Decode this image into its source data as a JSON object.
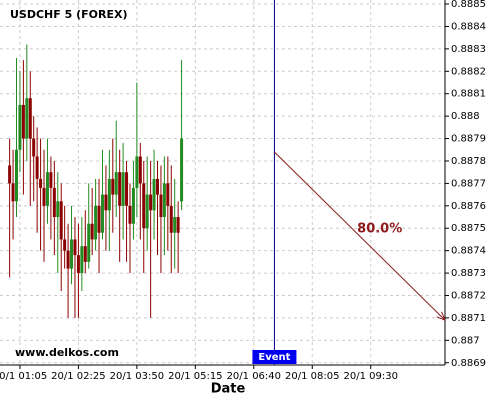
{
  "chart_data": {
    "type": "candlestick",
    "title": "USDCHF 5 (FOREX)",
    "x_label": "Date",
    "watermark": "www.delkos.com",
    "x": [
      50,
      55,
      60,
      65,
      70,
      75,
      80,
      85,
      90,
      95,
      100,
      105,
      110,
      115,
      120,
      125,
      130,
      135,
      140,
      145,
      150,
      155,
      160,
      165,
      170,
      175,
      180,
      185,
      190,
      195,
      200,
      205,
      210,
      215,
      220,
      225,
      230,
      235,
      240,
      245,
      250,
      255,
      260,
      265,
      270,
      275,
      280,
      285,
      290,
      295,
      300
    ],
    "open": [
      0.88778,
      0.8877,
      0.88762,
      0.88785,
      0.88805,
      0.8879,
      0.88808,
      0.8879,
      0.88782,
      0.88772,
      0.88768,
      0.8876,
      0.88775,
      0.88768,
      0.88755,
      0.88762,
      0.88745,
      0.8874,
      0.88732,
      0.88745,
      0.88738,
      0.8873,
      0.88742,
      0.88735,
      0.88752,
      0.88745,
      0.8876,
      0.88748,
      0.88765,
      0.88758,
      0.88772,
      0.88765,
      0.88775,
      0.8876,
      0.88775,
      0.8876,
      0.88752,
      0.88768,
      0.88782,
      0.8877,
      0.8875,
      0.88765,
      0.88758,
      0.88772,
      0.88765,
      0.88755,
      0.8877,
      0.8876,
      0.88748,
      0.88755,
      0.88762
    ],
    "high": [
      0.8879,
      0.88785,
      0.88826,
      0.8882,
      0.88825,
      0.88832,
      0.8882,
      0.888,
      0.88795,
      0.8879,
      0.88785,
      0.8879,
      0.88782,
      0.8878,
      0.88775,
      0.8877,
      0.8876,
      0.88752,
      0.8876,
      0.88755,
      0.88752,
      0.88755,
      0.88758,
      0.8877,
      0.88768,
      0.88772,
      0.88772,
      0.88785,
      0.88778,
      0.88785,
      0.8879,
      0.88798,
      0.88785,
      0.88788,
      0.8878,
      0.8877,
      0.8878,
      0.88815,
      0.88788,
      0.8878,
      0.88782,
      0.8878,
      0.88785,
      0.8878,
      0.88778,
      0.88782,
      0.88782,
      0.88778,
      0.88772,
      0.88762,
      0.88825
    ],
    "low": [
      0.88728,
      0.88745,
      0.88755,
      0.88775,
      0.88765,
      0.8878,
      0.8876,
      0.88762,
      0.88748,
      0.8874,
      0.88735,
      0.88752,
      0.88745,
      0.88738,
      0.8873,
      0.88722,
      0.88732,
      0.8871,
      0.88725,
      0.8871,
      0.8871,
      0.88722,
      0.8873,
      0.88732,
      0.88738,
      0.8874,
      0.8873,
      0.88745,
      0.8874,
      0.8874,
      0.88748,
      0.88755,
      0.88735,
      0.88745,
      0.88735,
      0.8873,
      0.88745,
      0.88755,
      0.88745,
      0.8873,
      0.8874,
      0.8871,
      0.88745,
      0.88738,
      0.8873,
      0.88738,
      0.8874,
      0.8873,
      0.88732,
      0.8873,
      0.88758
    ],
    "close": [
      0.8877,
      0.88762,
      0.88785,
      0.88805,
      0.8879,
      0.88808,
      0.8879,
      0.88782,
      0.88772,
      0.88768,
      0.8876,
      0.88775,
      0.88768,
      0.88755,
      0.88762,
      0.88745,
      0.8874,
      0.88732,
      0.88745,
      0.88738,
      0.8873,
      0.88742,
      0.88735,
      0.88752,
      0.88745,
      0.8876,
      0.88748,
      0.88765,
      0.88758,
      0.88772,
      0.88765,
      0.88775,
      0.8876,
      0.88775,
      0.8876,
      0.88752,
      0.88768,
      0.88782,
      0.8877,
      0.8875,
      0.88765,
      0.88758,
      0.88772,
      0.88765,
      0.88755,
      0.8877,
      0.8876,
      0.88748,
      0.88755,
      0.88748,
      0.8879
    ],
    "up_color": "#228b22",
    "down_color": "#8b0000",
    "xlim": [
      36,
      683
    ],
    "xticks": [
      {
        "value": 65,
        "label": "20/1 01:05"
      },
      {
        "value": 150,
        "label": "20/1 02:25"
      },
      {
        "value": 235,
        "label": "20/1 03:50"
      },
      {
        "value": 320,
        "label": "20/1 05:15"
      },
      {
        "value": 405,
        "label": "20/1 06:40"
      },
      {
        "value": 490,
        "label": "20/1 08:05"
      },
      {
        "value": 575,
        "label": "20/1 09:30"
      }
    ],
    "ylim": [
      0.88689,
      0.888518
    ],
    "yticks": [
      0.8869,
      0.887,
      0.8871,
      0.8872,
      0.8873,
      0.8874,
      0.8875,
      0.8876,
      0.8877,
      0.8878,
      0.8879,
      0.888,
      0.8881,
      0.8882,
      0.8883,
      0.8884,
      0.8885
    ],
    "grid": true,
    "event": {
      "x": 435,
      "label": "Event",
      "color": "#00008b"
    },
    "forecast": {
      "x": [
        435,
        683
      ],
      "y": [
        0.88784,
        0.88709
      ],
      "label": "80.0%",
      "color": "#8b1a1a"
    }
  }
}
